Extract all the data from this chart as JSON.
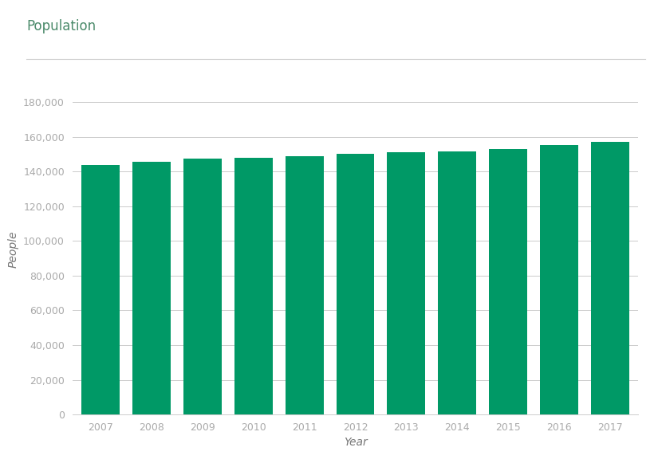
{
  "title": "Population",
  "xlabel": "Year",
  "ylabel": "People",
  "years": [
    2007,
    2008,
    2009,
    2010,
    2011,
    2012,
    2013,
    2014,
    2015,
    2016,
    2017
  ],
  "values": [
    144000,
    145500,
    147500,
    148000,
    148800,
    150000,
    151000,
    151600,
    153000,
    155200,
    157000
  ],
  "bar_color": "#009966",
  "background_color": "#ffffff",
  "title_color": "#4a8a6a",
  "axis_label_color": "#777777",
  "tick_color": "#aaaaaa",
  "grid_color": "#cccccc",
  "ylim": [
    0,
    190000
  ],
  "yticks": [
    0,
    20000,
    40000,
    60000,
    80000,
    100000,
    120000,
    140000,
    160000,
    180000
  ],
  "title_fontsize": 12,
  "label_fontsize": 10,
  "tick_fontsize": 9,
  "bar_width": 0.75
}
